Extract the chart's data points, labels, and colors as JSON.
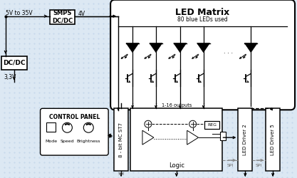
{
  "bg_color": "#dce8f3",
  "title": "LED Matrix",
  "subtitle": "80 blue LEDs used",
  "input_label": "5V to 35V",
  "smps_label": "SMPS\nDC/DC",
  "smps_out_label": "4V",
  "dcdc_label": "DC/DC",
  "dcdc_out_label": "3,3V",
  "mcu_label": "8 - bit MC ST7",
  "logic_label": "Logic",
  "led_driver2_label": "LED Driver 2",
  "led_driver5_label": "LED Driver 5",
  "control_panel_label": "CONTROL PANEL",
  "cp_sublabels": [
    "Mode",
    "Speed",
    "Brightness"
  ],
  "outputs_label": "1-16 outputs",
  "reg_label": "REG",
  "spi_label": "SPI"
}
